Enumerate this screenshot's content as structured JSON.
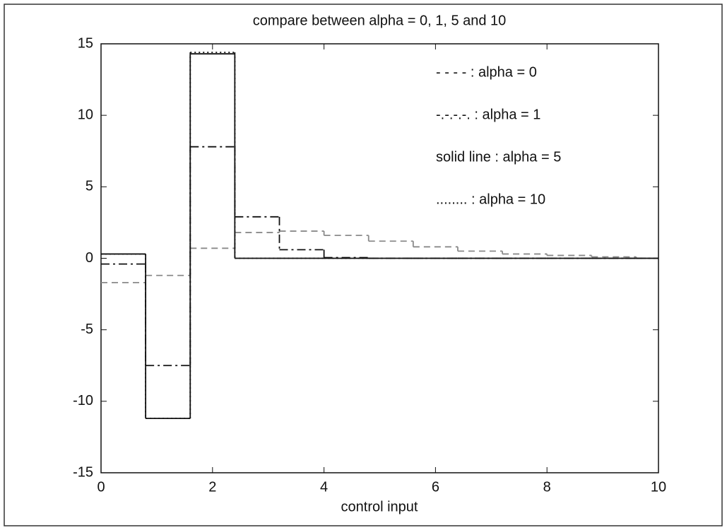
{
  "chart_data": {
    "type": "step",
    "title": "compare between alpha = 0, 1, 5 and 10",
    "xlabel": "control input",
    "x": [
      0,
      0.8,
      1.6,
      2.4,
      3.2,
      4.0,
      4.8,
      5.6,
      6.4,
      7.2,
      8.0,
      8.8,
      9.6
    ],
    "series": [
      {
        "name": "- - - - : alpha = 0",
        "color": "#8a8a8a",
        "style": "dashed",
        "values": [
          -1.7,
          -1.2,
          0.7,
          1.8,
          1.9,
          1.6,
          1.2,
          0.8,
          0.5,
          0.3,
          0.2,
          0.1,
          0
        ]
      },
      {
        "name": "-.-.-.-. : alpha = 1",
        "color": "#111111",
        "style": "dashdot",
        "values": [
          -0.4,
          -7.5,
          7.8,
          2.9,
          0.6,
          0.05,
          0,
          0,
          0,
          0,
          0,
          0,
          0
        ]
      },
      {
        "name": "solid line : alpha = 5",
        "color": "#111111",
        "style": "solid",
        "values": [
          0.3,
          -11.2,
          14.3,
          0,
          0,
          0,
          0,
          0,
          0,
          0,
          0,
          0,
          0
        ]
      },
      {
        "name": "........ : alpha = 10",
        "color": "#111111",
        "style": "dotted",
        "values": [
          0.3,
          -11.2,
          14.4,
          0,
          0,
          0,
          0,
          0,
          0,
          0,
          0,
          0,
          0
        ]
      }
    ],
    "xlim": [
      0,
      10
    ],
    "xticks": [
      0,
      2,
      4,
      6,
      8,
      10
    ],
    "ylim": [
      -15,
      15
    ],
    "yticks": [
      -15,
      -10,
      -5,
      0,
      5,
      10,
      15
    ],
    "grid": false
  }
}
